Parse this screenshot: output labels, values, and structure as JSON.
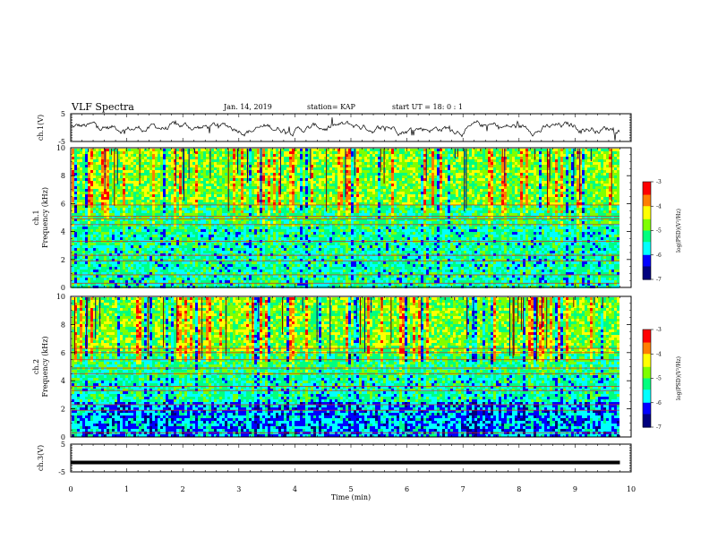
{
  "header": {
    "title": "VLF Spectra",
    "date": "Jan. 14, 2019",
    "station": "station= KAP",
    "start_ut": "start  UT =   18: 0  : 1"
  },
  "colors": {
    "spectrogram_scale": [
      "#00007f",
      "#0000ff",
      "#00ffff",
      "#00ff7f",
      "#7fff00",
      "#ffff00",
      "#ff7f00",
      "#ff0000",
      "#7f0000"
    ],
    "trace": "#000000"
  },
  "chart_data": [
    {
      "type": "line",
      "name": "ch1-waveform",
      "ylabel": "ch.1(V)",
      "ylim": [
        -5,
        5
      ],
      "yticks": [
        "5",
        "-5"
      ],
      "xlim": [
        0,
        10
      ],
      "description_of_series": "noisy trace fluctuating roughly between -3 and +3 V over 0-9.8 min"
    },
    {
      "type": "heatmap",
      "name": "ch1-spectrogram",
      "ylabel": "ch.1\nFrequency (kHz)",
      "ylim": [
        0,
        10
      ],
      "yticks": [
        "0",
        "2",
        "4",
        "6",
        "8",
        "10"
      ],
      "xlim": [
        0,
        10
      ],
      "colorbar": {
        "label": "log(PSD)(V²/Hz)",
        "range": [
          -7,
          -3
        ],
        "ticks": [
          "-3",
          "-4",
          "-5",
          "-6",
          "-7"
        ]
      },
      "bands_khz": [
        0.3,
        0.9,
        1.9,
        2.3,
        3.3,
        4.5,
        4.9,
        5.1,
        5.9
      ]
    },
    {
      "type": "heatmap",
      "name": "ch2-spectrogram",
      "ylabel": "ch.2\nFrequency (kHz)",
      "ylim": [
        0,
        10
      ],
      "yticks": [
        "0",
        "2",
        "4",
        "6",
        "8",
        "10"
      ],
      "xlim": [
        0,
        10
      ],
      "colorbar": {
        "label": "log(PSD)(V²/Hz)",
        "range": [
          -7,
          -3
        ],
        "ticks": [
          "-3",
          "-4",
          "-5",
          "-6",
          "-7"
        ]
      },
      "bands_khz": [
        0.3,
        1.9,
        2.3,
        3.3,
        3.6,
        4.5,
        4.9,
        5.5,
        6.0,
        6.3
      ]
    },
    {
      "type": "line",
      "name": "ch3-waveform",
      "ylabel": "ch.3(V)",
      "ylim": [
        -5,
        5
      ],
      "yticks": [
        "5",
        "-5"
      ],
      "xlim": [
        0,
        10
      ],
      "values": [
        [
          0,
          -1.6
        ],
        [
          9.8,
          -1.6
        ]
      ]
    }
  ],
  "xaxis": {
    "label": "Time (min)",
    "ticks": [
      "0",
      "1",
      "2",
      "3",
      "4",
      "5",
      "6",
      "7",
      "8",
      "9",
      "10"
    ]
  }
}
